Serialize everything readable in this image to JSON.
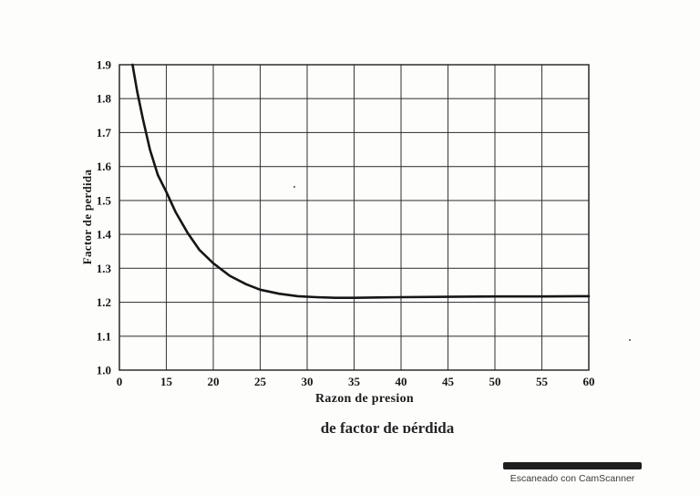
{
  "page": {
    "background": "#fdfdfc"
  },
  "caption": {
    "text": "de factor de pérdida"
  },
  "watermark": {
    "text": "Escaneado con CamScanner"
  },
  "chart_data": {
    "type": "line",
    "title": "",
    "xlabel": "Razon de presion",
    "ylabel": "Factor de perdida",
    "x_tick_labels": [
      "0",
      "15",
      "20",
      "25",
      "30",
      "35",
      "40",
      "45",
      "50",
      "55",
      "60"
    ],
    "y_ticks": [
      1.0,
      1.1,
      1.2,
      1.3,
      1.4,
      1.5,
      1.6,
      1.7,
      1.8,
      1.9
    ],
    "y_tick_labels": [
      "1.0",
      "1.1",
      "1.2",
      "1.3",
      "1.4",
      "1.5",
      "1.6",
      "1.7",
      "1.8",
      "1.9"
    ],
    "ylim": [
      1.0,
      1.9
    ],
    "grid": true,
    "legend": "none",
    "grid_color": "#2e2e2e",
    "line_color": "#161616",
    "series": [
      {
        "name": "factor de perdida",
        "points_gridx_value": [
          [
            0.28,
            1.9
          ],
          [
            0.38,
            1.82
          ],
          [
            0.5,
            1.74
          ],
          [
            0.65,
            1.65
          ],
          [
            0.82,
            1.575
          ],
          [
            1.0,
            1.525
          ],
          [
            1.2,
            1.465
          ],
          [
            1.45,
            1.405
          ],
          [
            1.7,
            1.355
          ],
          [
            2.0,
            1.315
          ],
          [
            2.35,
            1.278
          ],
          [
            2.7,
            1.253
          ],
          [
            3.0,
            1.237
          ],
          [
            3.4,
            1.225
          ],
          [
            3.8,
            1.218
          ],
          [
            4.2,
            1.215
          ],
          [
            4.6,
            1.213
          ],
          [
            5.0,
            1.213
          ],
          [
            5.5,
            1.214
          ],
          [
            6.0,
            1.215
          ],
          [
            7.0,
            1.216
          ],
          [
            8.0,
            1.217
          ],
          [
            9.0,
            1.217
          ],
          [
            10.0,
            1.218
          ]
        ]
      }
    ]
  }
}
